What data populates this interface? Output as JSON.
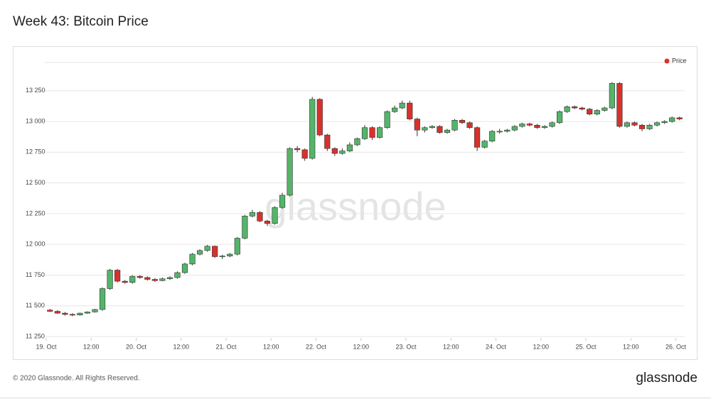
{
  "chart_data": {
    "type": "candlestick",
    "title": "Week 43: Bitcoin Price",
    "legend": {
      "label": "Price",
      "color": "#e0312a",
      "position": "top-right"
    },
    "watermark": "glassnode",
    "footer": "© 2020 Glassnode. All Rights Reserved.",
    "brand": "glassnode",
    "up_color": "#55b46a",
    "down_color": "#d8312b",
    "grid": true,
    "xlim": [
      "19 Oct 00:00",
      "26 Oct 02:00"
    ],
    "xticks": [
      {
        "value": "19 Oct 00:00",
        "label": "19. Oct"
      },
      {
        "value": "19 Oct 12:00",
        "label": "12:00"
      },
      {
        "value": "20 Oct 00:00",
        "label": "20. Oct"
      },
      {
        "value": "20 Oct 12:00",
        "label": "12:00"
      },
      {
        "value": "21 Oct 00:00",
        "label": "21. Oct"
      },
      {
        "value": "21 Oct 12:00",
        "label": "12:00"
      },
      {
        "value": "22 Oct 00:00",
        "label": "22. Oct"
      },
      {
        "value": "22 Oct 12:00",
        "label": "12:00"
      },
      {
        "value": "23 Oct 00:00",
        "label": "23. Oct"
      },
      {
        "value": "23 Oct 12:00",
        "label": "12:00"
      },
      {
        "value": "24 Oct 00:00",
        "label": "24. Oct"
      },
      {
        "value": "24 Oct 12:00",
        "label": "12:00"
      },
      {
        "value": "25 Oct 00:00",
        "label": "25. Oct"
      },
      {
        "value": "25 Oct 12:00",
        "label": "12:00"
      },
      {
        "value": "26 Oct 00:00",
        "label": "26. Oct"
      }
    ],
    "ylim": [
      11250,
      13480
    ],
    "yticks": [
      {
        "value": 11250,
        "label": "11 250"
      },
      {
        "value": 11500,
        "label": "11 500"
      },
      {
        "value": 11750,
        "label": "11 750"
      },
      {
        "value": 12000,
        "label": "12 000"
      },
      {
        "value": 12250,
        "label": "12 250"
      },
      {
        "value": 12500,
        "label": "12 500"
      },
      {
        "value": 12750,
        "label": "12 750"
      },
      {
        "value": 13000,
        "label": "13 000"
      },
      {
        "value": 13250,
        "label": "13 250"
      }
    ],
    "x": [
      "19 Oct 00:00",
      "19 Oct 02:00",
      "19 Oct 04:00",
      "19 Oct 06:00",
      "19 Oct 08:00",
      "19 Oct 10:00",
      "19 Oct 12:00",
      "19 Oct 14:00",
      "19 Oct 16:00",
      "19 Oct 18:00",
      "19 Oct 20:00",
      "19 Oct 22:00",
      "20 Oct 00:00",
      "20 Oct 02:00",
      "20 Oct 04:00",
      "20 Oct 06:00",
      "20 Oct 08:00",
      "20 Oct 10:00",
      "20 Oct 12:00",
      "20 Oct 14:00",
      "20 Oct 16:00",
      "20 Oct 18:00",
      "20 Oct 20:00",
      "20 Oct 22:00",
      "21 Oct 00:00",
      "21 Oct 02:00",
      "21 Oct 04:00",
      "21 Oct 06:00",
      "21 Oct 08:00",
      "21 Oct 10:00",
      "21 Oct 12:00",
      "21 Oct 14:00",
      "21 Oct 16:00",
      "21 Oct 18:00",
      "21 Oct 20:00",
      "21 Oct 22:00",
      "22 Oct 00:00",
      "22 Oct 02:00",
      "22 Oct 04:00",
      "22 Oct 06:00",
      "22 Oct 08:00",
      "22 Oct 10:00",
      "22 Oct 12:00",
      "22 Oct 14:00",
      "22 Oct 16:00",
      "22 Oct 18:00",
      "22 Oct 20:00",
      "22 Oct 22:00",
      "23 Oct 00:00",
      "23 Oct 02:00",
      "23 Oct 04:00",
      "23 Oct 06:00",
      "23 Oct 08:00",
      "23 Oct 10:00",
      "23 Oct 12:00",
      "23 Oct 14:00",
      "23 Oct 16:00",
      "23 Oct 18:00",
      "23 Oct 20:00",
      "23 Oct 22:00",
      "24 Oct 00:00",
      "24 Oct 02:00",
      "24 Oct 04:00",
      "24 Oct 06:00",
      "24 Oct 08:00",
      "24 Oct 10:00",
      "24 Oct 12:00",
      "24 Oct 14:00",
      "24 Oct 16:00",
      "24 Oct 18:00",
      "24 Oct 20:00",
      "24 Oct 22:00",
      "25 Oct 00:00",
      "25 Oct 02:00",
      "25 Oct 04:00",
      "25 Oct 06:00",
      "25 Oct 08:00",
      "25 Oct 10:00",
      "25 Oct 12:00",
      "25 Oct 14:00",
      "25 Oct 16:00",
      "25 Oct 18:00",
      "25 Oct 20:00",
      "25 Oct 22:00",
      "26 Oct 00:00"
    ],
    "open": [
      11465,
      11455,
      11440,
      11430,
      11425,
      11440,
      11450,
      11470,
      11640,
      11790,
      11700,
      11690,
      11740,
      11730,
      11715,
      11705,
      11720,
      11730,
      11770,
      11840,
      11920,
      11950,
      11985,
      11900,
      11905,
      11920,
      12050,
      12230,
      12260,
      12190,
      12170,
      12300,
      12400,
      12780,
      12770,
      12700,
      13180,
      12890,
      12780,
      12740,
      12760,
      12810,
      12860,
      12950,
      12870,
      12950,
      13080,
      13110,
      13150,
      13020,
      12930,
      12950,
      12960,
      12910,
      12930,
      13010,
      12990,
      12950,
      12790,
      12840,
      12920,
      12920,
      12930,
      12960,
      12980,
      12970,
      12950,
      12960,
      12990,
      13080,
      13120,
      13110,
      13100,
      13060,
      13090,
      13110,
      13310,
      12960,
      12990,
      12970,
      12940,
      12970,
      12990,
      13000,
      13030
    ],
    "high": [
      11475,
      11465,
      11450,
      11440,
      11445,
      11455,
      11475,
      11650,
      11800,
      11800,
      11710,
      11750,
      11750,
      11740,
      11725,
      11730,
      11740,
      11780,
      11850,
      11930,
      11960,
      11995,
      11990,
      11915,
      11930,
      12060,
      12240,
      12280,
      12270,
      12200,
      12310,
      12420,
      12790,
      12800,
      12780,
      13200,
      13190,
      12900,
      12790,
      12780,
      12830,
      12870,
      12970,
      12960,
      12960,
      13090,
      13130,
      13170,
      13170,
      13030,
      12960,
      12970,
      12970,
      12940,
      13020,
      13020,
      13000,
      12960,
      12850,
      12930,
      12940,
      12940,
      12970,
      12990,
      12990,
      12980,
      12970,
      13000,
      13090,
      13130,
      13130,
      13120,
      13110,
      13100,
      13120,
      13320,
      13320,
      13000,
      13000,
      12980,
      12980,
      13000,
      13010,
      13040,
      13040
    ],
    "low": [
      11450,
      11435,
      11420,
      11415,
      11420,
      11435,
      11445,
      11460,
      11630,
      11690,
      11680,
      11680,
      11720,
      11705,
      11695,
      11700,
      11710,
      11720,
      11760,
      11830,
      11910,
      11940,
      11890,
      11880,
      11895,
      11910,
      12040,
      12220,
      12180,
      12150,
      12160,
      12290,
      12390,
      12750,
      12680,
      12690,
      12880,
      12760,
      12720,
      12730,
      12750,
      12800,
      12850,
      12850,
      12860,
      12940,
      13070,
      13100,
      13010,
      12880,
      12910,
      12940,
      12900,
      12900,
      12920,
      12980,
      12940,
      12760,
      12780,
      12830,
      12900,
      12910,
      12920,
      12950,
      12960,
      12940,
      12940,
      12950,
      12980,
      13070,
      13100,
      13090,
      13050,
      13050,
      13080,
      13100,
      12950,
      12950,
      12960,
      12920,
      12930,
      12960,
      12980,
      12990,
      13010
    ],
    "close": [
      11455,
      11440,
      11430,
      11425,
      11440,
      11450,
      11470,
      11640,
      11790,
      11700,
      11690,
      11740,
      11730,
      11715,
      11705,
      11720,
      11730,
      11770,
      11840,
      11920,
      11950,
      11985,
      11900,
      11905,
      11920,
      12050,
      12230,
      12260,
      12190,
      12170,
      12300,
      12400,
      12780,
      12770,
      12700,
      13180,
      12890,
      12780,
      12740,
      12760,
      12810,
      12860,
      12950,
      12870,
      12950,
      13080,
      13110,
      13150,
      13020,
      12930,
      12950,
      12960,
      12910,
      12930,
      13010,
      12990,
      12950,
      12790,
      12840,
      12920,
      12920,
      12930,
      12960,
      12980,
      12970,
      12950,
      12960,
      12990,
      13080,
      13120,
      13110,
      13100,
      13060,
      13090,
      13110,
      13310,
      12960,
      12990,
      12970,
      12940,
      12970,
      12990,
      13000,
      13030,
      13020
    ]
  }
}
